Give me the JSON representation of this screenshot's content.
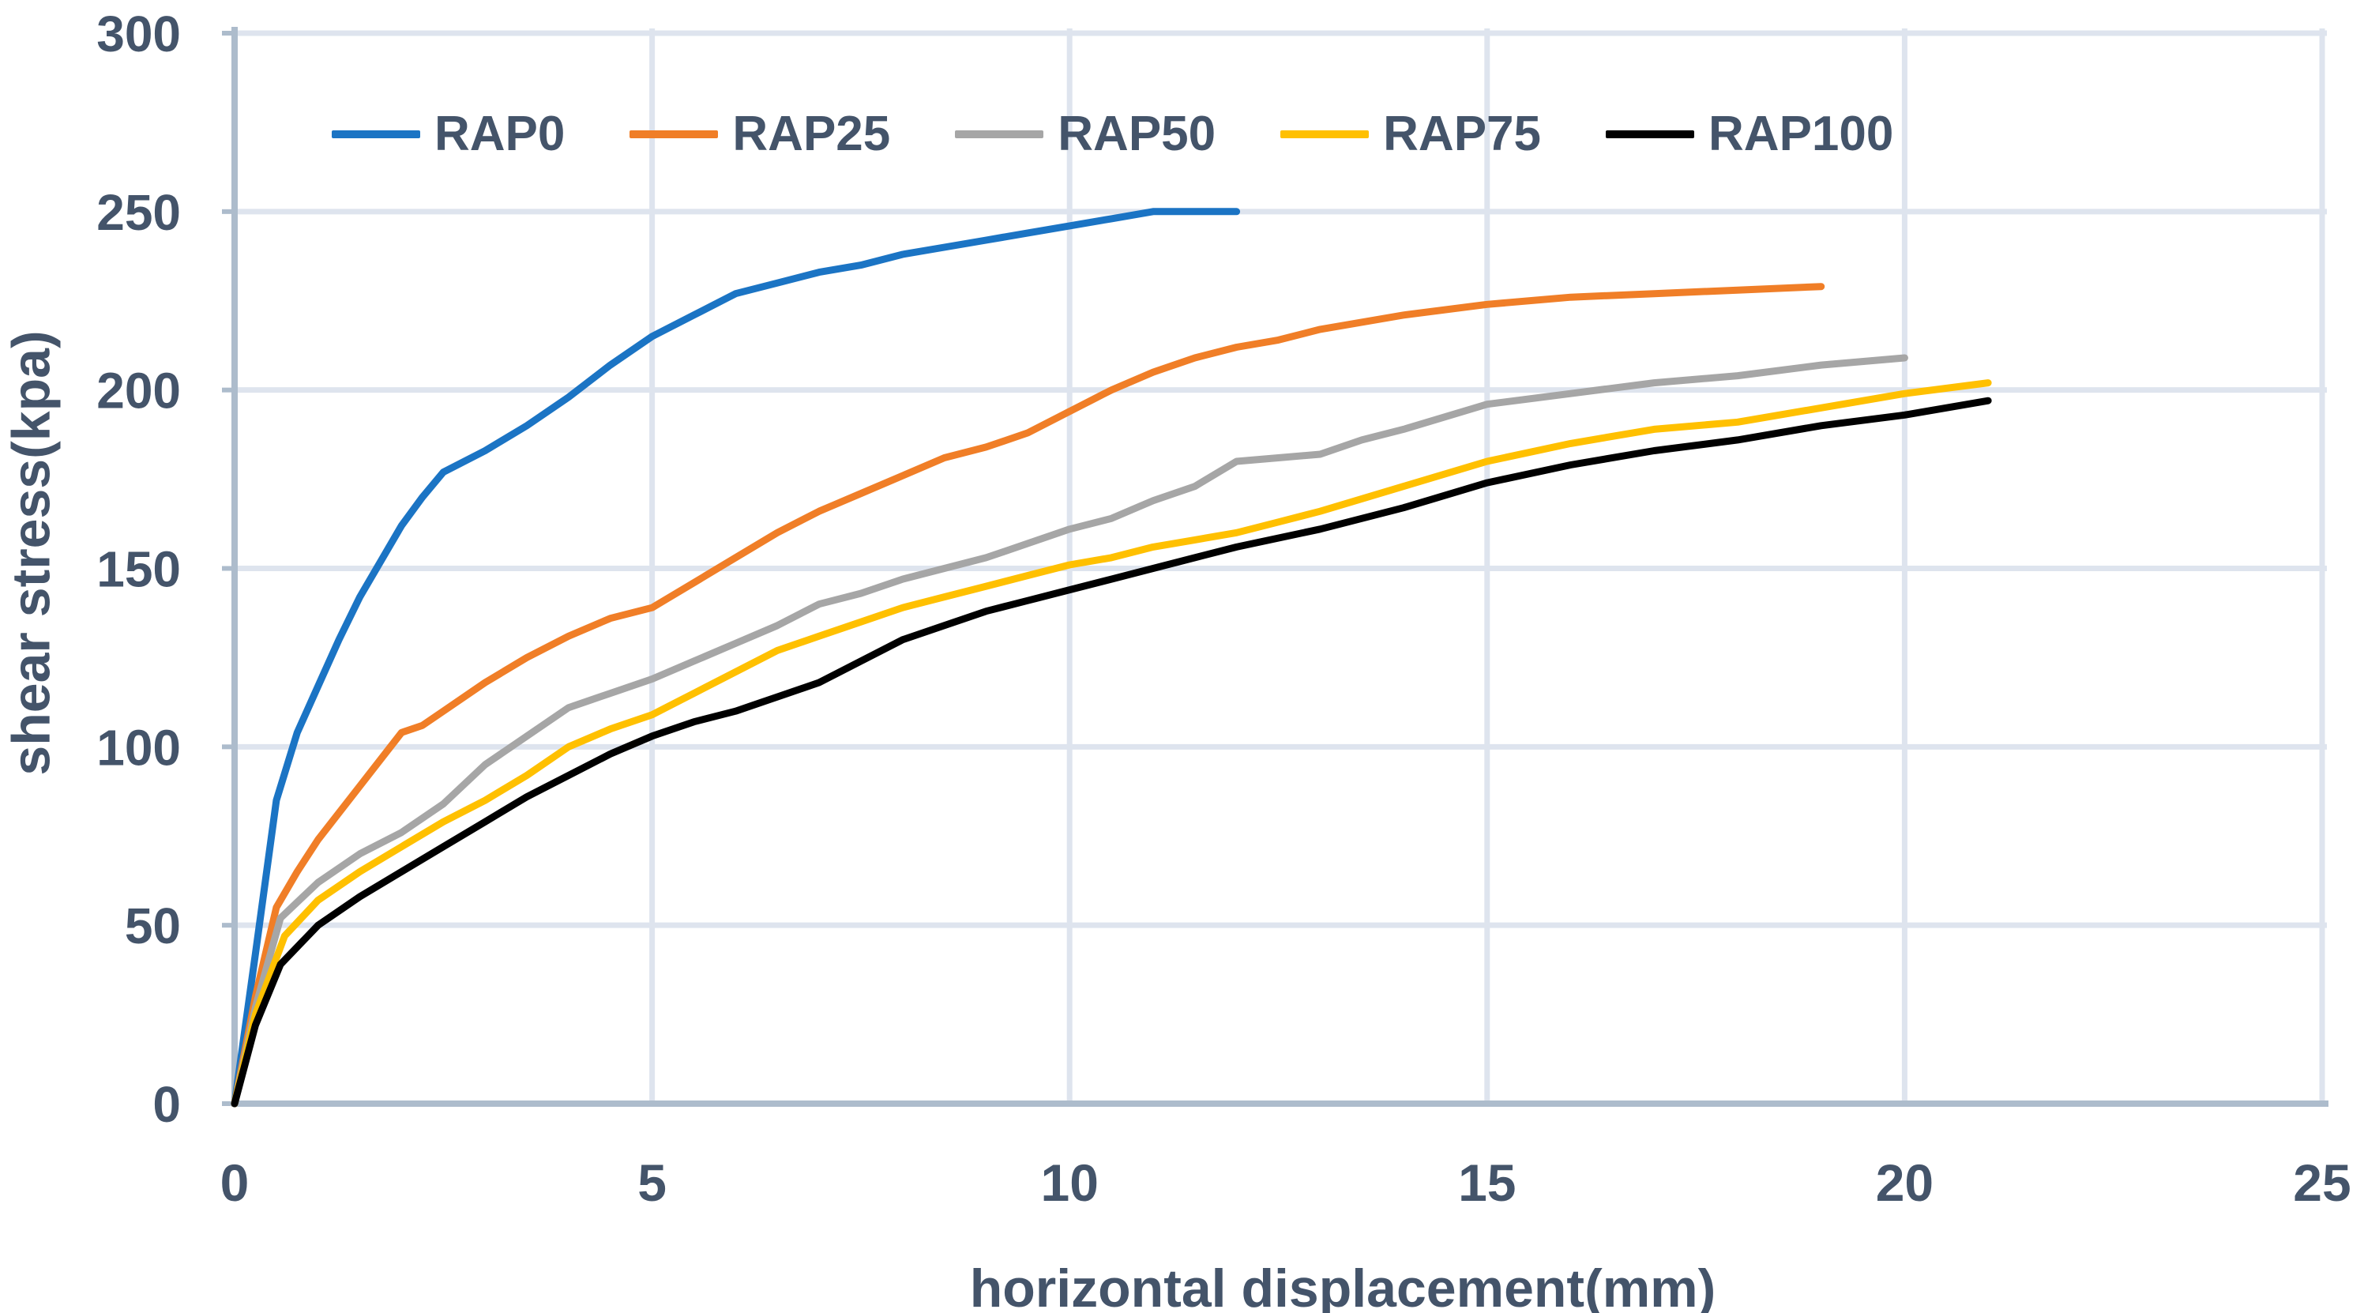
{
  "figure": {
    "background": "#FFFFFF",
    "text_color": "#44546A",
    "gridline_color": "#DEE4EE",
    "axis_line_color": "#ADBCCC"
  },
  "chart_data": {
    "type": "line",
    "title": "",
    "xlabel": "horizontal displacement(mm)",
    "ylabel": "shear stress(kpa)",
    "xlim": [
      0,
      25
    ],
    "ylim": [
      0,
      300
    ],
    "xticks": [
      0,
      5,
      10,
      15,
      20,
      25
    ],
    "yticks": [
      0,
      50,
      100,
      150,
      200,
      250,
      300
    ],
    "xtick_labels": [
      "0",
      "5",
      "10",
      "15",
      "20",
      "25"
    ],
    "ytick_labels": [
      "0",
      "50",
      "100",
      "150",
      "200",
      "250",
      "300"
    ],
    "grid": true,
    "legend_position": "top-inside",
    "line_width": 9,
    "series": [
      {
        "name": "RAP0",
        "color": "#1B74C4",
        "points": [
          [
            0,
            0
          ],
          [
            0.25,
            42
          ],
          [
            0.5,
            85
          ],
          [
            0.75,
            104
          ],
          [
            1,
            117
          ],
          [
            1.25,
            130
          ],
          [
            1.5,
            142
          ],
          [
            1.75,
            152
          ],
          [
            2,
            162
          ],
          [
            2.25,
            170
          ],
          [
            2.5,
            177
          ],
          [
            3,
            183
          ],
          [
            3.5,
            190
          ],
          [
            4,
            198
          ],
          [
            4.5,
            207
          ],
          [
            5,
            215
          ],
          [
            5.5,
            221
          ],
          [
            6,
            227
          ],
          [
            6.5,
            230
          ],
          [
            7,
            233
          ],
          [
            7.5,
            235
          ],
          [
            8,
            238
          ],
          [
            8.5,
            240
          ],
          [
            9,
            242
          ],
          [
            9.5,
            244
          ],
          [
            10,
            246
          ],
          [
            10.5,
            248
          ],
          [
            11,
            250
          ],
          [
            11.5,
            250
          ],
          [
            12,
            250
          ]
        ]
      },
      {
        "name": "RAP25",
        "color": "#F07E27",
        "points": [
          [
            0,
            0
          ],
          [
            0.25,
            30
          ],
          [
            0.5,
            55
          ],
          [
            0.75,
            65
          ],
          [
            1,
            74
          ],
          [
            1.5,
            89
          ],
          [
            2,
            104
          ],
          [
            2.25,
            106
          ],
          [
            2.5,
            110
          ],
          [
            3,
            118
          ],
          [
            3.5,
            125
          ],
          [
            4,
            131
          ],
          [
            4.5,
            136
          ],
          [
            5,
            139
          ],
          [
            5.5,
            146
          ],
          [
            6,
            153
          ],
          [
            6.5,
            160
          ],
          [
            7,
            166
          ],
          [
            7.5,
            171
          ],
          [
            8,
            176
          ],
          [
            8.5,
            181
          ],
          [
            9,
            184
          ],
          [
            9.5,
            188
          ],
          [
            10,
            194
          ],
          [
            10.5,
            200
          ],
          [
            11,
            205
          ],
          [
            11.5,
            209
          ],
          [
            12,
            212
          ],
          [
            12.5,
            214
          ],
          [
            13,
            217
          ],
          [
            14,
            221
          ],
          [
            15,
            224
          ],
          [
            16,
            226
          ],
          [
            17,
            227
          ],
          [
            18,
            228
          ],
          [
            19,
            229
          ]
        ]
      },
      {
        "name": "RAP50",
        "color": "#A6A6A6",
        "points": [
          [
            0,
            0
          ],
          [
            0.25,
            27
          ],
          [
            0.55,
            52
          ],
          [
            1,
            62
          ],
          [
            1.5,
            70
          ],
          [
            2,
            76
          ],
          [
            2.5,
            84
          ],
          [
            3,
            95
          ],
          [
            3.5,
            103
          ],
          [
            4,
            111
          ],
          [
            4.5,
            115
          ],
          [
            5,
            119
          ],
          [
            5.5,
            124
          ],
          [
            6,
            129
          ],
          [
            6.5,
            134
          ],
          [
            7,
            140
          ],
          [
            7.5,
            143
          ],
          [
            8,
            147
          ],
          [
            8.5,
            150
          ],
          [
            9,
            153
          ],
          [
            9.5,
            157
          ],
          [
            10,
            161
          ],
          [
            10.5,
            164
          ],
          [
            11,
            169
          ],
          [
            11.5,
            173
          ],
          [
            12,
            180
          ],
          [
            12.5,
            181
          ],
          [
            13,
            182
          ],
          [
            13.5,
            186
          ],
          [
            14,
            189
          ],
          [
            15,
            196
          ],
          [
            16,
            199
          ],
          [
            17,
            202
          ],
          [
            18,
            204
          ],
          [
            19,
            207
          ],
          [
            20,
            209
          ]
        ]
      },
      {
        "name": "RAP75",
        "color": "#FFC000",
        "points": [
          [
            0,
            0
          ],
          [
            0.25,
            25
          ],
          [
            0.6,
            47
          ],
          [
            1,
            57
          ],
          [
            1.5,
            65
          ],
          [
            2,
            72
          ],
          [
            2.5,
            79
          ],
          [
            3,
            85
          ],
          [
            3.5,
            92
          ],
          [
            4,
            100
          ],
          [
            4.5,
            105
          ],
          [
            5,
            109
          ],
          [
            5.5,
            115
          ],
          [
            6,
            121
          ],
          [
            6.5,
            127
          ],
          [
            7,
            131
          ],
          [
            7.5,
            135
          ],
          [
            8,
            139
          ],
          [
            8.5,
            142
          ],
          [
            9,
            145
          ],
          [
            9.5,
            148
          ],
          [
            10,
            151
          ],
          [
            10.5,
            153
          ],
          [
            11,
            156
          ],
          [
            11.5,
            158
          ],
          [
            12,
            160
          ],
          [
            12.5,
            163
          ],
          [
            13,
            166
          ],
          [
            14,
            173
          ],
          [
            15,
            180
          ],
          [
            16,
            185
          ],
          [
            17,
            189
          ],
          [
            18,
            191
          ],
          [
            19,
            195
          ],
          [
            20,
            199
          ],
          [
            21,
            202
          ]
        ]
      },
      {
        "name": "RAP100",
        "color": "#000000",
        "points": [
          [
            0,
            0
          ],
          [
            0.25,
            22
          ],
          [
            0.55,
            39
          ],
          [
            1,
            50
          ],
          [
            1.5,
            58
          ],
          [
            2,
            65
          ],
          [
            2.5,
            72
          ],
          [
            3,
            79
          ],
          [
            3.5,
            86
          ],
          [
            4,
            92
          ],
          [
            4.5,
            98
          ],
          [
            5,
            103
          ],
          [
            5.5,
            107
          ],
          [
            6,
            110
          ],
          [
            6.5,
            114
          ],
          [
            7,
            118
          ],
          [
            7.5,
            124
          ],
          [
            8,
            130
          ],
          [
            8.5,
            134
          ],
          [
            9,
            138
          ],
          [
            9.5,
            141
          ],
          [
            10,
            144
          ],
          [
            10.5,
            147
          ],
          [
            11,
            150
          ],
          [
            11.5,
            153
          ],
          [
            12,
            156
          ],
          [
            13,
            161
          ],
          [
            14,
            167
          ],
          [
            15,
            174
          ],
          [
            16,
            179
          ],
          [
            17,
            183
          ],
          [
            18,
            186
          ],
          [
            19,
            190
          ],
          [
            20,
            193
          ],
          [
            21,
            197
          ]
        ]
      }
    ]
  }
}
